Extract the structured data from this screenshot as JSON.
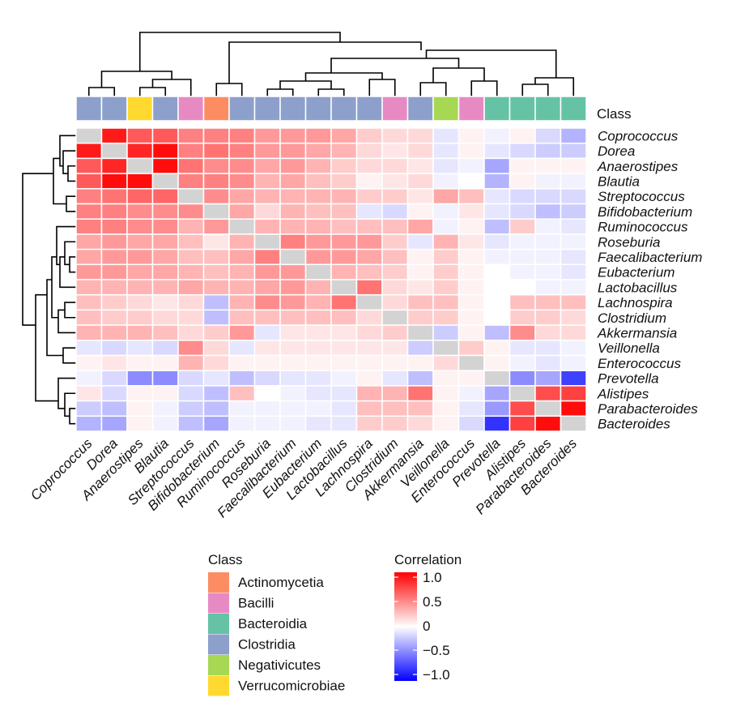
{
  "chart_data": {
    "type": "heatmap",
    "title": "",
    "class_annotation_title": "Class",
    "row_labels": [
      "Coprococcus",
      "Dorea",
      "Anaerostipes",
      "Blautia",
      "Streptococcus",
      "Bifidobacterium",
      "Ruminococcus",
      "Roseburia",
      "Faecalibacterium",
      "Eubacterium",
      "Lactobacillus",
      "Lachnospira",
      "Clostridium",
      "Akkermansia",
      "Veillonella",
      "Enterococcus",
      "Prevotella",
      "Alistipes",
      "Parabacteroides",
      "Bacteroides"
    ],
    "column_labels": [
      "Coprococcus",
      "Dorea",
      "Anaerostipes",
      "Blautia",
      "Streptococcus",
      "Bifidobacterium",
      "Ruminococcus",
      "Roseburia",
      "Faecalibacterium",
      "Eubacterium",
      "Lactobacillus",
      "Lachnospira",
      "Clostridium",
      "Akkermansia",
      "Veillonella",
      "Enterococcus",
      "Prevotella",
      "Alistipes",
      "Parabacteroides",
      "Bacteroides"
    ],
    "column_classes": [
      "Clostridia",
      "Clostridia",
      "Verrucomicrobiae",
      "Clostridia",
      "Bacilli",
      "Actinomycetia",
      "Clostridia",
      "Clostridia",
      "Clostridia",
      "Clostridia",
      "Clostridia",
      "Clostridia",
      "Bacilli",
      "Clostridia",
      "Negativicutes",
      "Bacilli",
      "Bacteroidia",
      "Bacteroidia",
      "Bacteroidia",
      "Bacteroidia"
    ],
    "class_legend": [
      {
        "name": "Actinomycetia",
        "color": "#fc8d62"
      },
      {
        "name": "Bacilli",
        "color": "#e78ac3"
      },
      {
        "name": "Bacteroidia",
        "color": "#66c2a5"
      },
      {
        "name": "Clostridia",
        "color": "#8da0cb"
      },
      {
        "name": "Negativicutes",
        "color": "#a6d854"
      },
      {
        "name": "Verrucomicrobiae",
        "color": "#ffd92f"
      }
    ],
    "color_scale": {
      "title": "Correlation",
      "min": -1.0,
      "max": 1.0,
      "ticks": [
        1.0,
        0.5,
        0,
        -0.5,
        -1.0
      ],
      "tick_labels": [
        "1.0",
        "0.5",
        "0",
        "−0.5",
        "−1.0"
      ],
      "low_color": "#0000ff",
      "mid_color": "#ffffff",
      "high_color": "#ff0000",
      "diagonal_color": "#d3d3d3"
    },
    "matrix": [
      [
        null,
        0.9,
        0.65,
        0.65,
        0.5,
        0.5,
        0.5,
        0.4,
        0.4,
        0.4,
        0.35,
        0.2,
        0.15,
        0.15,
        -0.1,
        0.05,
        -0.05,
        0.05,
        -0.15,
        -0.3
      ],
      [
        0.9,
        null,
        0.85,
        0.95,
        0.5,
        0.55,
        0.5,
        0.4,
        0.4,
        0.35,
        0.3,
        0.15,
        0.1,
        0.15,
        -0.1,
        0.05,
        -0.1,
        -0.15,
        -0.2,
        -0.2
      ],
      [
        0.65,
        0.85,
        null,
        0.95,
        0.55,
        0.45,
        0.45,
        0.35,
        0.4,
        0.3,
        0.2,
        0.15,
        0.15,
        0.1,
        -0.1,
        -0.05,
        -0.35,
        0.05,
        0.05,
        0.05
      ],
      [
        0.65,
        0.95,
        0.95,
        null,
        0.5,
        0.5,
        0.45,
        0.3,
        0.35,
        0.25,
        0.2,
        0.05,
        0.1,
        0.15,
        -0.05,
        0.0,
        -0.3,
        0.05,
        -0.05,
        -0.05
      ],
      [
        0.5,
        0.55,
        0.6,
        0.6,
        null,
        0.45,
        0.35,
        0.3,
        0.3,
        0.3,
        0.3,
        0.2,
        0.2,
        0.1,
        0.35,
        0.25,
        -0.1,
        -0.15,
        -0.15,
        -0.15
      ],
      [
        0.5,
        0.5,
        0.45,
        0.45,
        0.45,
        null,
        0.35,
        0.15,
        0.3,
        0.25,
        0.25,
        -0.1,
        -0.15,
        0.05,
        -0.05,
        0.1,
        -0.1,
        -0.15,
        -0.25,
        -0.2
      ],
      [
        0.5,
        0.5,
        0.45,
        0.45,
        0.3,
        0.4,
        null,
        0.3,
        0.3,
        0.3,
        0.25,
        0.25,
        0.25,
        0.35,
        -0.05,
        0.05,
        -0.25,
        0.2,
        -0.05,
        -0.1
      ],
      [
        0.35,
        0.4,
        0.35,
        0.35,
        0.25,
        0.1,
        0.3,
        null,
        0.5,
        0.4,
        0.4,
        0.4,
        0.2,
        -0.1,
        0.3,
        0.1,
        -0.1,
        -0.05,
        -0.05,
        -0.05
      ],
      [
        0.35,
        0.4,
        0.4,
        0.35,
        0.25,
        0.25,
        0.35,
        0.5,
        null,
        0.4,
        0.4,
        0.35,
        0.25,
        0.05,
        0.2,
        0.05,
        -0.05,
        -0.05,
        -0.05,
        -0.1
      ],
      [
        0.4,
        0.4,
        0.35,
        0.35,
        0.3,
        0.25,
        0.3,
        0.4,
        0.4,
        null,
        0.3,
        0.25,
        0.2,
        0.05,
        0.2,
        0.05,
        0.0,
        -0.05,
        -0.05,
        -0.1
      ],
      [
        0.3,
        0.3,
        0.3,
        0.3,
        0.35,
        0.3,
        0.3,
        0.35,
        0.4,
        0.3,
        null,
        0.55,
        0.15,
        0.1,
        0.2,
        0.05,
        0.0,
        0.0,
        -0.05,
        -0.05
      ],
      [
        0.25,
        0.2,
        0.15,
        0.1,
        0.15,
        -0.25,
        0.3,
        0.45,
        0.4,
        0.3,
        0.55,
        null,
        0.15,
        0.25,
        0.25,
        0.05,
        0.0,
        0.25,
        0.25,
        0.25
      ],
      [
        0.25,
        0.2,
        0.2,
        0.15,
        0.15,
        -0.25,
        0.25,
        0.25,
        0.25,
        0.25,
        0.25,
        0.15,
        null,
        0.2,
        0.2,
        0.05,
        0.0,
        0.2,
        0.2,
        0.15
      ],
      [
        0.3,
        0.3,
        0.3,
        0.25,
        0.15,
        0.2,
        0.4,
        -0.1,
        0.1,
        0.1,
        0.1,
        0.15,
        0.2,
        null,
        -0.2,
        0.05,
        -0.25,
        0.45,
        0.15,
        0.15
      ],
      [
        -0.1,
        -0.15,
        -0.1,
        -0.15,
        0.45,
        0.15,
        -0.1,
        0.1,
        0.1,
        0.1,
        0.1,
        0.1,
        0.1,
        -0.2,
        null,
        0.2,
        0.05,
        -0.1,
        -0.1,
        -0.05
      ],
      [
        0.05,
        0.1,
        0.05,
        0.05,
        0.3,
        0.15,
        0.05,
        0.05,
        0.05,
        0.05,
        0.05,
        0.05,
        0.05,
        0.05,
        0.15,
        null,
        0.05,
        -0.05,
        -0.1,
        -0.05
      ],
      [
        -0.05,
        -0.15,
        -0.45,
        -0.45,
        -0.15,
        -0.1,
        -0.25,
        -0.15,
        -0.1,
        -0.1,
        -0.05,
        0.05,
        -0.1,
        -0.25,
        0.05,
        0.05,
        null,
        -0.45,
        -0.35,
        -0.75
      ],
      [
        0.1,
        -0.15,
        0.05,
        0.05,
        -0.15,
        -0.25,
        0.25,
        0.0,
        -0.05,
        -0.1,
        -0.1,
        0.3,
        0.3,
        0.55,
        0.05,
        -0.05,
        -0.35,
        null,
        0.7,
        0.75
      ],
      [
        -0.2,
        -0.25,
        0.05,
        -0.05,
        -0.2,
        -0.25,
        -0.05,
        -0.05,
        -0.05,
        -0.05,
        -0.1,
        0.25,
        0.25,
        0.25,
        0.05,
        -0.1,
        -0.4,
        0.7,
        null,
        0.95
      ],
      [
        -0.3,
        -0.35,
        0.05,
        -0.05,
        -0.25,
        -0.35,
        -0.05,
        -0.05,
        -0.05,
        -0.1,
        -0.1,
        0.2,
        0.2,
        0.15,
        0.05,
        -0.15,
        -0.8,
        0.75,
        0.95,
        null
      ]
    ]
  }
}
